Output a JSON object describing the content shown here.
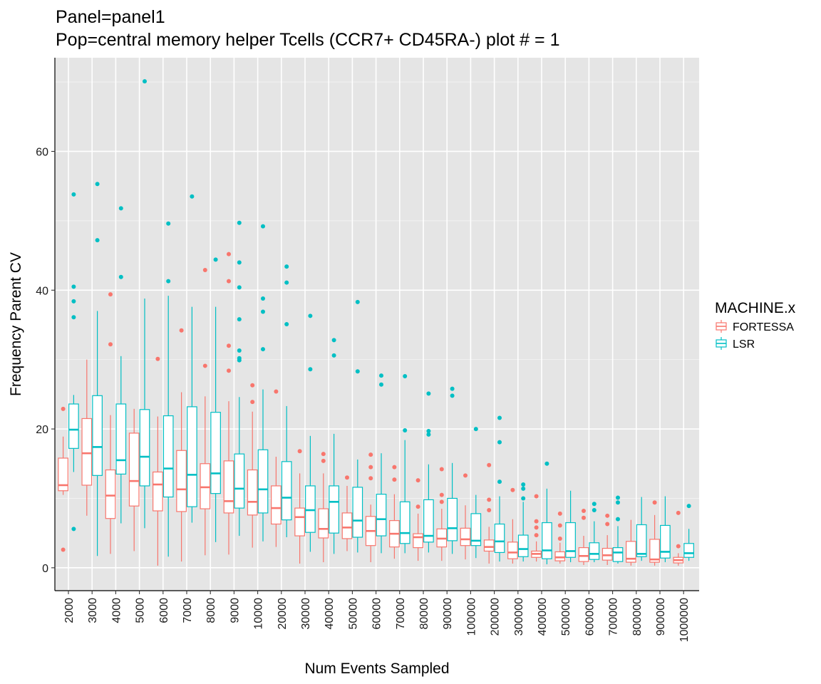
{
  "chart_data": {
    "type": "box",
    "title": "Panel=panel1",
    "subtitle": "Pop=central memory helper Tcells (CCR7+ CD45RA-) plot # = 1",
    "xlabel": "Num Events Sampled",
    "ylabel": "Frequency Parent CV",
    "ylim": [
      -3.3,
      73.5
    ],
    "y_ticks": [
      0,
      20,
      40,
      60
    ],
    "grid": true,
    "legend": {
      "title": "MACHINE.x",
      "placement": "right"
    },
    "categories": [
      "2000",
      "3000",
      "4000",
      "5000",
      "6000",
      "7000",
      "8000",
      "9000",
      "10000",
      "20000",
      "30000",
      "40000",
      "50000",
      "60000",
      "70000",
      "80000",
      "90000",
      "100000",
      "200000",
      "300000",
      "400000",
      "500000",
      "600000",
      "700000",
      "800000",
      "900000",
      "1000000"
    ],
    "series": [
      {
        "name": "FORTESSA",
        "color": "#F8766D",
        "boxes": [
          {
            "lower": 10.5,
            "q1": 11.1,
            "median": 11.9,
            "q3": 15.8,
            "upper": 18.9,
            "outliers": [
              2.6,
              22.9
            ]
          },
          {
            "lower": 7.5,
            "q1": 11.9,
            "median": 16.5,
            "q3": 21.5,
            "upper": 30.0,
            "outliers": []
          },
          {
            "lower": 2.0,
            "q1": 7.1,
            "median": 10.4,
            "q3": 14.1,
            "upper": 22.0,
            "outliers": [
              32.2,
              39.4
            ]
          },
          {
            "lower": 2.4,
            "q1": 8.9,
            "median": 12.5,
            "q3": 19.4,
            "upper": 22.9,
            "outliers": []
          },
          {
            "lower": 0.3,
            "q1": 8.2,
            "median": 12.0,
            "q3": 13.8,
            "upper": 21.8,
            "outliers": [
              30.1
            ]
          },
          {
            "lower": 0.9,
            "q1": 8.1,
            "median": 11.3,
            "q3": 16.9,
            "upper": 25.3,
            "outliers": [
              34.2
            ]
          },
          {
            "lower": 1.8,
            "q1": 8.5,
            "median": 11.6,
            "q3": 15.0,
            "upper": 24.7,
            "outliers": [
              29.1,
              42.9
            ]
          },
          {
            "lower": 1.9,
            "q1": 7.9,
            "median": 9.6,
            "q3": 15.4,
            "upper": 24.0,
            "outliers": [
              28.4,
              32.0,
              41.3,
              45.2
            ]
          },
          {
            "lower": 2.9,
            "q1": 7.6,
            "median": 9.5,
            "q3": 14.1,
            "upper": 22.5,
            "outliers": [
              23.9,
              26.3
            ]
          },
          {
            "lower": 3.0,
            "q1": 6.3,
            "median": 8.6,
            "q3": 11.8,
            "upper": 16.0,
            "outliers": [
              25.4
            ]
          },
          {
            "lower": 0.6,
            "q1": 4.6,
            "median": 7.3,
            "q3": 8.6,
            "upper": 13.6,
            "outliers": [
              16.8
            ]
          },
          {
            "lower": 0.8,
            "q1": 4.3,
            "median": 5.6,
            "q3": 8.5,
            "upper": 13.6,
            "outliers": [
              15.4,
              16.4
            ]
          },
          {
            "lower": 2.4,
            "q1": 4.2,
            "median": 5.8,
            "q3": 7.9,
            "upper": 11.8,
            "outliers": [
              13.0
            ]
          },
          {
            "lower": 0.8,
            "q1": 3.2,
            "median": 5.3,
            "q3": 7.4,
            "upper": 9.1,
            "outliers": [
              12.9,
              14.5,
              16.3
            ]
          },
          {
            "lower": 1.3,
            "q1": 3.0,
            "median": 4.9,
            "q3": 6.8,
            "upper": 10.6,
            "outliers": [
              12.7,
              14.5
            ]
          },
          {
            "lower": 1.0,
            "q1": 2.9,
            "median": 4.4,
            "q3": 4.9,
            "upper": 7.8,
            "outliers": [
              8.8,
              12.6
            ]
          },
          {
            "lower": 1.0,
            "q1": 3.0,
            "median": 4.2,
            "q3": 5.6,
            "upper": 8.5,
            "outliers": [
              9.5,
              10.5,
              14.2
            ]
          },
          {
            "lower": 1.2,
            "q1": 3.2,
            "median": 4.1,
            "q3": 5.7,
            "upper": 9.0,
            "outliers": [
              13.3
            ]
          },
          {
            "lower": 0.6,
            "q1": 2.4,
            "median": 3.0,
            "q3": 4.0,
            "upper": 5.9,
            "outliers": [
              8.3,
              9.8,
              14.8
            ]
          },
          {
            "lower": 0.6,
            "q1": 1.3,
            "median": 2.2,
            "q3": 3.7,
            "upper": 7.0,
            "outliers": [
              11.2
            ]
          },
          {
            "lower": 0.9,
            "q1": 1.5,
            "median": 2.0,
            "q3": 2.4,
            "upper": 3.8,
            "outliers": [
              4.7,
              5.8,
              6.7,
              10.3
            ]
          },
          {
            "lower": 0.6,
            "q1": 1.0,
            "median": 1.5,
            "q3": 2.3,
            "upper": 3.6,
            "outliers": [
              4.2,
              6.1,
              7.8
            ]
          },
          {
            "lower": 0.4,
            "q1": 0.9,
            "median": 1.7,
            "q3": 2.9,
            "upper": 4.6,
            "outliers": [
              7.2,
              8.2
            ]
          },
          {
            "lower": 0.4,
            "q1": 1.1,
            "median": 1.8,
            "q3": 2.8,
            "upper": 4.7,
            "outliers": [
              6.3,
              7.5
            ]
          },
          {
            "lower": 0.3,
            "q1": 0.8,
            "median": 1.3,
            "q3": 3.8,
            "upper": 6.9,
            "outliers": []
          },
          {
            "lower": 0.3,
            "q1": 0.8,
            "median": 1.2,
            "q3": 4.1,
            "upper": 7.6,
            "outliers": [
              9.4
            ]
          },
          {
            "lower": 0.3,
            "q1": 0.7,
            "median": 1.1,
            "q3": 1.5,
            "upper": 2.1,
            "outliers": [
              3.1,
              7.9
            ]
          }
        ]
      },
      {
        "name": "LSR",
        "color": "#00BFC4",
        "boxes": [
          {
            "lower": 13.8,
            "q1": 17.2,
            "median": 19.9,
            "q3": 23.6,
            "upper": 24.9,
            "outliers": [
              5.6,
              36.1,
              38.4,
              40.5,
              53.8
            ]
          },
          {
            "lower": 1.7,
            "q1": 13.3,
            "median": 17.4,
            "q3": 24.8,
            "upper": 37.0,
            "outliers": [
              47.2,
              55.3
            ]
          },
          {
            "lower": 6.4,
            "q1": 13.5,
            "median": 15.5,
            "q3": 23.6,
            "upper": 30.5,
            "outliers": [
              41.9,
              51.8
            ]
          },
          {
            "lower": 5.7,
            "q1": 11.8,
            "median": 16.0,
            "q3": 22.8,
            "upper": 38.8,
            "outliers": [
              70.1
            ]
          },
          {
            "lower": 1.6,
            "q1": 10.2,
            "median": 14.3,
            "q3": 21.9,
            "upper": 39.2,
            "outliers": [
              41.3,
              49.6
            ]
          },
          {
            "lower": 6.5,
            "q1": 8.8,
            "median": 13.4,
            "q3": 23.2,
            "upper": 37.6,
            "outliers": [
              53.5
            ]
          },
          {
            "lower": 3.7,
            "q1": 10.7,
            "median": 13.6,
            "q3": 22.4,
            "upper": 37.6,
            "outliers": [
              44.4
            ]
          },
          {
            "lower": 4.6,
            "q1": 8.6,
            "median": 11.4,
            "q3": 16.4,
            "upper": 24.6,
            "outliers": [
              29.9,
              30.2,
              31.3,
              35.8,
              40.4,
              44.0,
              49.7
            ]
          },
          {
            "lower": 3.8,
            "q1": 7.9,
            "median": 11.3,
            "q3": 17.0,
            "upper": 25.7,
            "outliers": [
              31.5,
              36.9,
              38.8,
              49.2
            ]
          },
          {
            "lower": 4.4,
            "q1": 6.9,
            "median": 10.1,
            "q3": 15.3,
            "upper": 23.3,
            "outliers": [
              35.1,
              41.1,
              43.4
            ]
          },
          {
            "lower": 2.3,
            "q1": 5.1,
            "median": 8.3,
            "q3": 11.8,
            "upper": 19.0,
            "outliers": [
              28.6,
              36.3
            ]
          },
          {
            "lower": 2.0,
            "q1": 5.0,
            "median": 9.5,
            "q3": 11.8,
            "upper": 19.3,
            "outliers": [
              30.6,
              32.8
            ]
          },
          {
            "lower": 2.2,
            "q1": 4.4,
            "median": 6.8,
            "q3": 11.6,
            "upper": 15.6,
            "outliers": [
              28.3,
              38.3
            ]
          },
          {
            "lower": 2.1,
            "q1": 4.6,
            "median": 7.0,
            "q3": 10.6,
            "upper": 16.5,
            "outliers": [
              26.4,
              27.7
            ]
          },
          {
            "lower": 2.1,
            "q1": 3.5,
            "median": 5.0,
            "q3": 9.5,
            "upper": 18.4,
            "outliers": [
              19.8,
              27.6
            ]
          },
          {
            "lower": 2.2,
            "q1": 3.7,
            "median": 4.6,
            "q3": 9.8,
            "upper": 14.9,
            "outliers": [
              19.2,
              19.7,
              25.1
            ]
          },
          {
            "lower": 2.0,
            "q1": 3.9,
            "median": 5.7,
            "q3": 10.0,
            "upper": 15.1,
            "outliers": [
              24.8,
              25.8
            ]
          },
          {
            "lower": 1.4,
            "q1": 3.2,
            "median": 3.9,
            "q3": 7.8,
            "upper": 10.5,
            "outliers": [
              20.0
            ]
          },
          {
            "lower": 0.9,
            "q1": 2.2,
            "median": 3.8,
            "q3": 6.3,
            "upper": 10.3,
            "outliers": [
              12.4,
              18.1,
              21.6
            ]
          },
          {
            "lower": 0.9,
            "q1": 1.6,
            "median": 2.7,
            "q3": 4.7,
            "upper": 9.5,
            "outliers": [
              10.0,
              11.4,
              12.0
            ]
          },
          {
            "lower": 0.5,
            "q1": 1.3,
            "median": 2.5,
            "q3": 6.5,
            "upper": 11.4,
            "outliers": [
              15.0
            ]
          },
          {
            "lower": 0.8,
            "q1": 1.5,
            "median": 2.4,
            "q3": 6.5,
            "upper": 11.1,
            "outliers": []
          },
          {
            "lower": 0.8,
            "q1": 1.2,
            "median": 2.0,
            "q3": 3.6,
            "upper": 6.7,
            "outliers": [
              8.3,
              9.2
            ]
          },
          {
            "lower": 0.6,
            "q1": 0.9,
            "median": 2.2,
            "q3": 2.9,
            "upper": 6.0,
            "outliers": [
              7.0,
              9.4,
              10.1
            ]
          },
          {
            "lower": 1.0,
            "q1": 1.6,
            "median": 2.0,
            "q3": 6.2,
            "upper": 10.2,
            "outliers": []
          },
          {
            "lower": 0.8,
            "q1": 1.4,
            "median": 2.3,
            "q3": 6.1,
            "upper": 10.3,
            "outliers": []
          },
          {
            "lower": 1.0,
            "q1": 1.5,
            "median": 2.1,
            "q3": 3.5,
            "upper": 5.6,
            "outliers": [
              8.9
            ]
          }
        ]
      }
    ]
  }
}
